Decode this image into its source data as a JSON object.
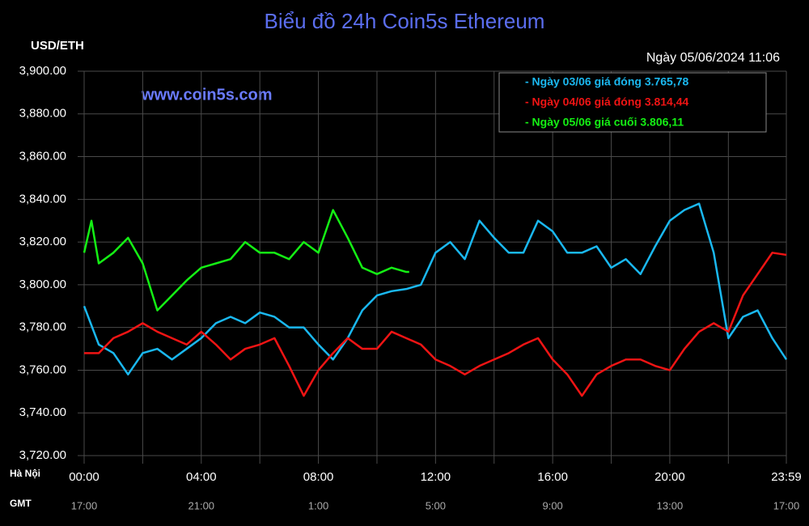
{
  "chart_data": {
    "type": "line",
    "title": "Biểu đồ 24h Coin5s Ethereum",
    "ylabel": "USD/ETH",
    "date_label": "Ngày 05/06/2024 11:06",
    "watermark": "www.coin5s.com",
    "x_row_labels": [
      "Hà Nội",
      "GMT"
    ],
    "xlim": [
      0,
      23.98
    ],
    "xticks": [
      {
        "value": 0,
        "label": "00:00"
      },
      {
        "value": 4,
        "label": "04:00"
      },
      {
        "value": 8,
        "label": "08:00"
      },
      {
        "value": 12,
        "label": "12:00"
      },
      {
        "value": 16,
        "label": "16:00"
      },
      {
        "value": 20,
        "label": "20:00"
      },
      {
        "value": 23.98,
        "label": "23:59"
      }
    ],
    "gmt_labels": [
      "17:00",
      "21:00",
      "1:00",
      "5:00",
      "9:00",
      "13:00",
      "17:00"
    ],
    "xminorticks": [
      2,
      6,
      10,
      14,
      18,
      22
    ],
    "ylim": [
      3720,
      3900
    ],
    "yticks": [
      {
        "value": 3720,
        "label": "3,720.00"
      },
      {
        "value": 3740,
        "label": "3,740.00"
      },
      {
        "value": 3760,
        "label": "3,760.00"
      },
      {
        "value": 3780,
        "label": "3,780.00"
      },
      {
        "value": 3800,
        "label": "3,800.00"
      },
      {
        "value": 3820,
        "label": "3,820.00"
      },
      {
        "value": 3840,
        "label": "3,840.00"
      },
      {
        "value": 3860,
        "label": "3,860.00"
      },
      {
        "value": 3880,
        "label": "3,880.00"
      },
      {
        "value": 3900,
        "label": "3,900.00"
      }
    ],
    "grid": true,
    "legend": "top-right",
    "series": [
      {
        "name": "- Ngày 03/06 giá đóng 3.765,78",
        "color": "#1ab8f0",
        "x": [
          0,
          0.5,
          1,
          1.5,
          2,
          2.5,
          3,
          3.5,
          4,
          4.5,
          5,
          5.5,
          6,
          6.5,
          7,
          7.5,
          8,
          8.5,
          9,
          9.5,
          10,
          10.5,
          11,
          11.5,
          12,
          12.5,
          13,
          13.5,
          14,
          14.5,
          15,
          15.5,
          16,
          16.5,
          17,
          17.5,
          18,
          18.5,
          19,
          19.5,
          20,
          20.5,
          21,
          21.5,
          22,
          22.5,
          23,
          23.5,
          23.98
        ],
        "values": [
          3790,
          3772,
          3768,
          3758,
          3768,
          3770,
          3765,
          3770,
          3775,
          3782,
          3785,
          3782,
          3787,
          3785,
          3780,
          3780,
          3772,
          3765,
          3775,
          3788,
          3795,
          3797,
          3798,
          3800,
          3815,
          3820,
          3812,
          3830,
          3822,
          3815,
          3815,
          3830,
          3825,
          3815,
          3815,
          3818,
          3808,
          3812,
          3805,
          3818,
          3830,
          3835,
          3838,
          3815,
          3775,
          3785,
          3788,
          3775,
          3765
        ]
      },
      {
        "name": "- Ngày 04/06 giá đóng 3.814,44",
        "color": "#f01414",
        "x": [
          0,
          0.5,
          1,
          1.5,
          2,
          2.5,
          3,
          3.5,
          4,
          4.5,
          5,
          5.5,
          6,
          6.5,
          7,
          7.5,
          8,
          8.5,
          9,
          9.5,
          10,
          10.5,
          11,
          11.5,
          12,
          12.5,
          13,
          13.5,
          14,
          14.5,
          15,
          15.5,
          16,
          16.5,
          17,
          17.5,
          18,
          18.5,
          19,
          19.5,
          20,
          20.5,
          21,
          21.5,
          22,
          22.5,
          23,
          23.5,
          23.98
        ],
        "values": [
          3768,
          3768,
          3775,
          3778,
          3782,
          3778,
          3775,
          3772,
          3778,
          3772,
          3765,
          3770,
          3772,
          3775,
          3762,
          3748,
          3760,
          3768,
          3775,
          3770,
          3770,
          3778,
          3775,
          3772,
          3765,
          3762,
          3758,
          3762,
          3765,
          3768,
          3772,
          3775,
          3765,
          3758,
          3748,
          3758,
          3762,
          3765,
          3765,
          3762,
          3760,
          3770,
          3778,
          3782,
          3778,
          3795,
          3805,
          3815,
          3814
        ]
      },
      {
        "name": "- Ngày 05/06 giá cuối 3.806,11",
        "color": "#14f014",
        "x": [
          0,
          0.25,
          0.5,
          1,
          1.5,
          2,
          2.5,
          3,
          3.5,
          4,
          4.5,
          5,
          5.5,
          6,
          6.5,
          7,
          7.5,
          8,
          8.5,
          9,
          9.5,
          10,
          10.5,
          11,
          11.1
        ],
        "values": [
          3815,
          3830,
          3810,
          3815,
          3822,
          3810,
          3788,
          3795,
          3802,
          3808,
          3810,
          3812,
          3820,
          3815,
          3815,
          3812,
          3820,
          3815,
          3835,
          3822,
          3808,
          3805,
          3808,
          3806,
          3806
        ]
      }
    ]
  }
}
